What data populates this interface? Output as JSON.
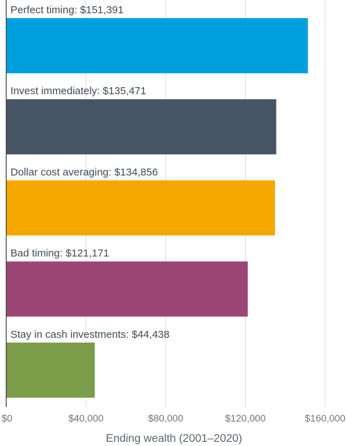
{
  "chart_data": {
    "type": "bar",
    "orientation": "horizontal",
    "categories": [
      "Perfect timing",
      "Invest immediately",
      "Dollar cost averaging",
      "Bad timing",
      "Stay in cash investments"
    ],
    "values": [
      151391,
      135471,
      134856,
      121171,
      44438
    ],
    "data_labels": [
      "Perfect timing: $151,391",
      "Invest immediately: $135,471",
      "Dollar cost averaging: $134,856",
      "Bad timing: $121,171",
      "Stay in cash investments: $44,438"
    ],
    "colors": [
      "#00a0df",
      "#465563",
      "#f5a800",
      "#9b4674",
      "#7b9d4a"
    ],
    "xlabel": "Ending wealth (2001–2020)",
    "ylabel": "",
    "xlim": [
      0,
      160000
    ],
    "xticks": [
      0,
      40000,
      80000,
      120000,
      160000
    ],
    "xtick_labels": [
      "$0",
      "$40,000",
      "$80,000",
      "$120,000",
      "$160,000"
    ],
    "grid": true
  }
}
